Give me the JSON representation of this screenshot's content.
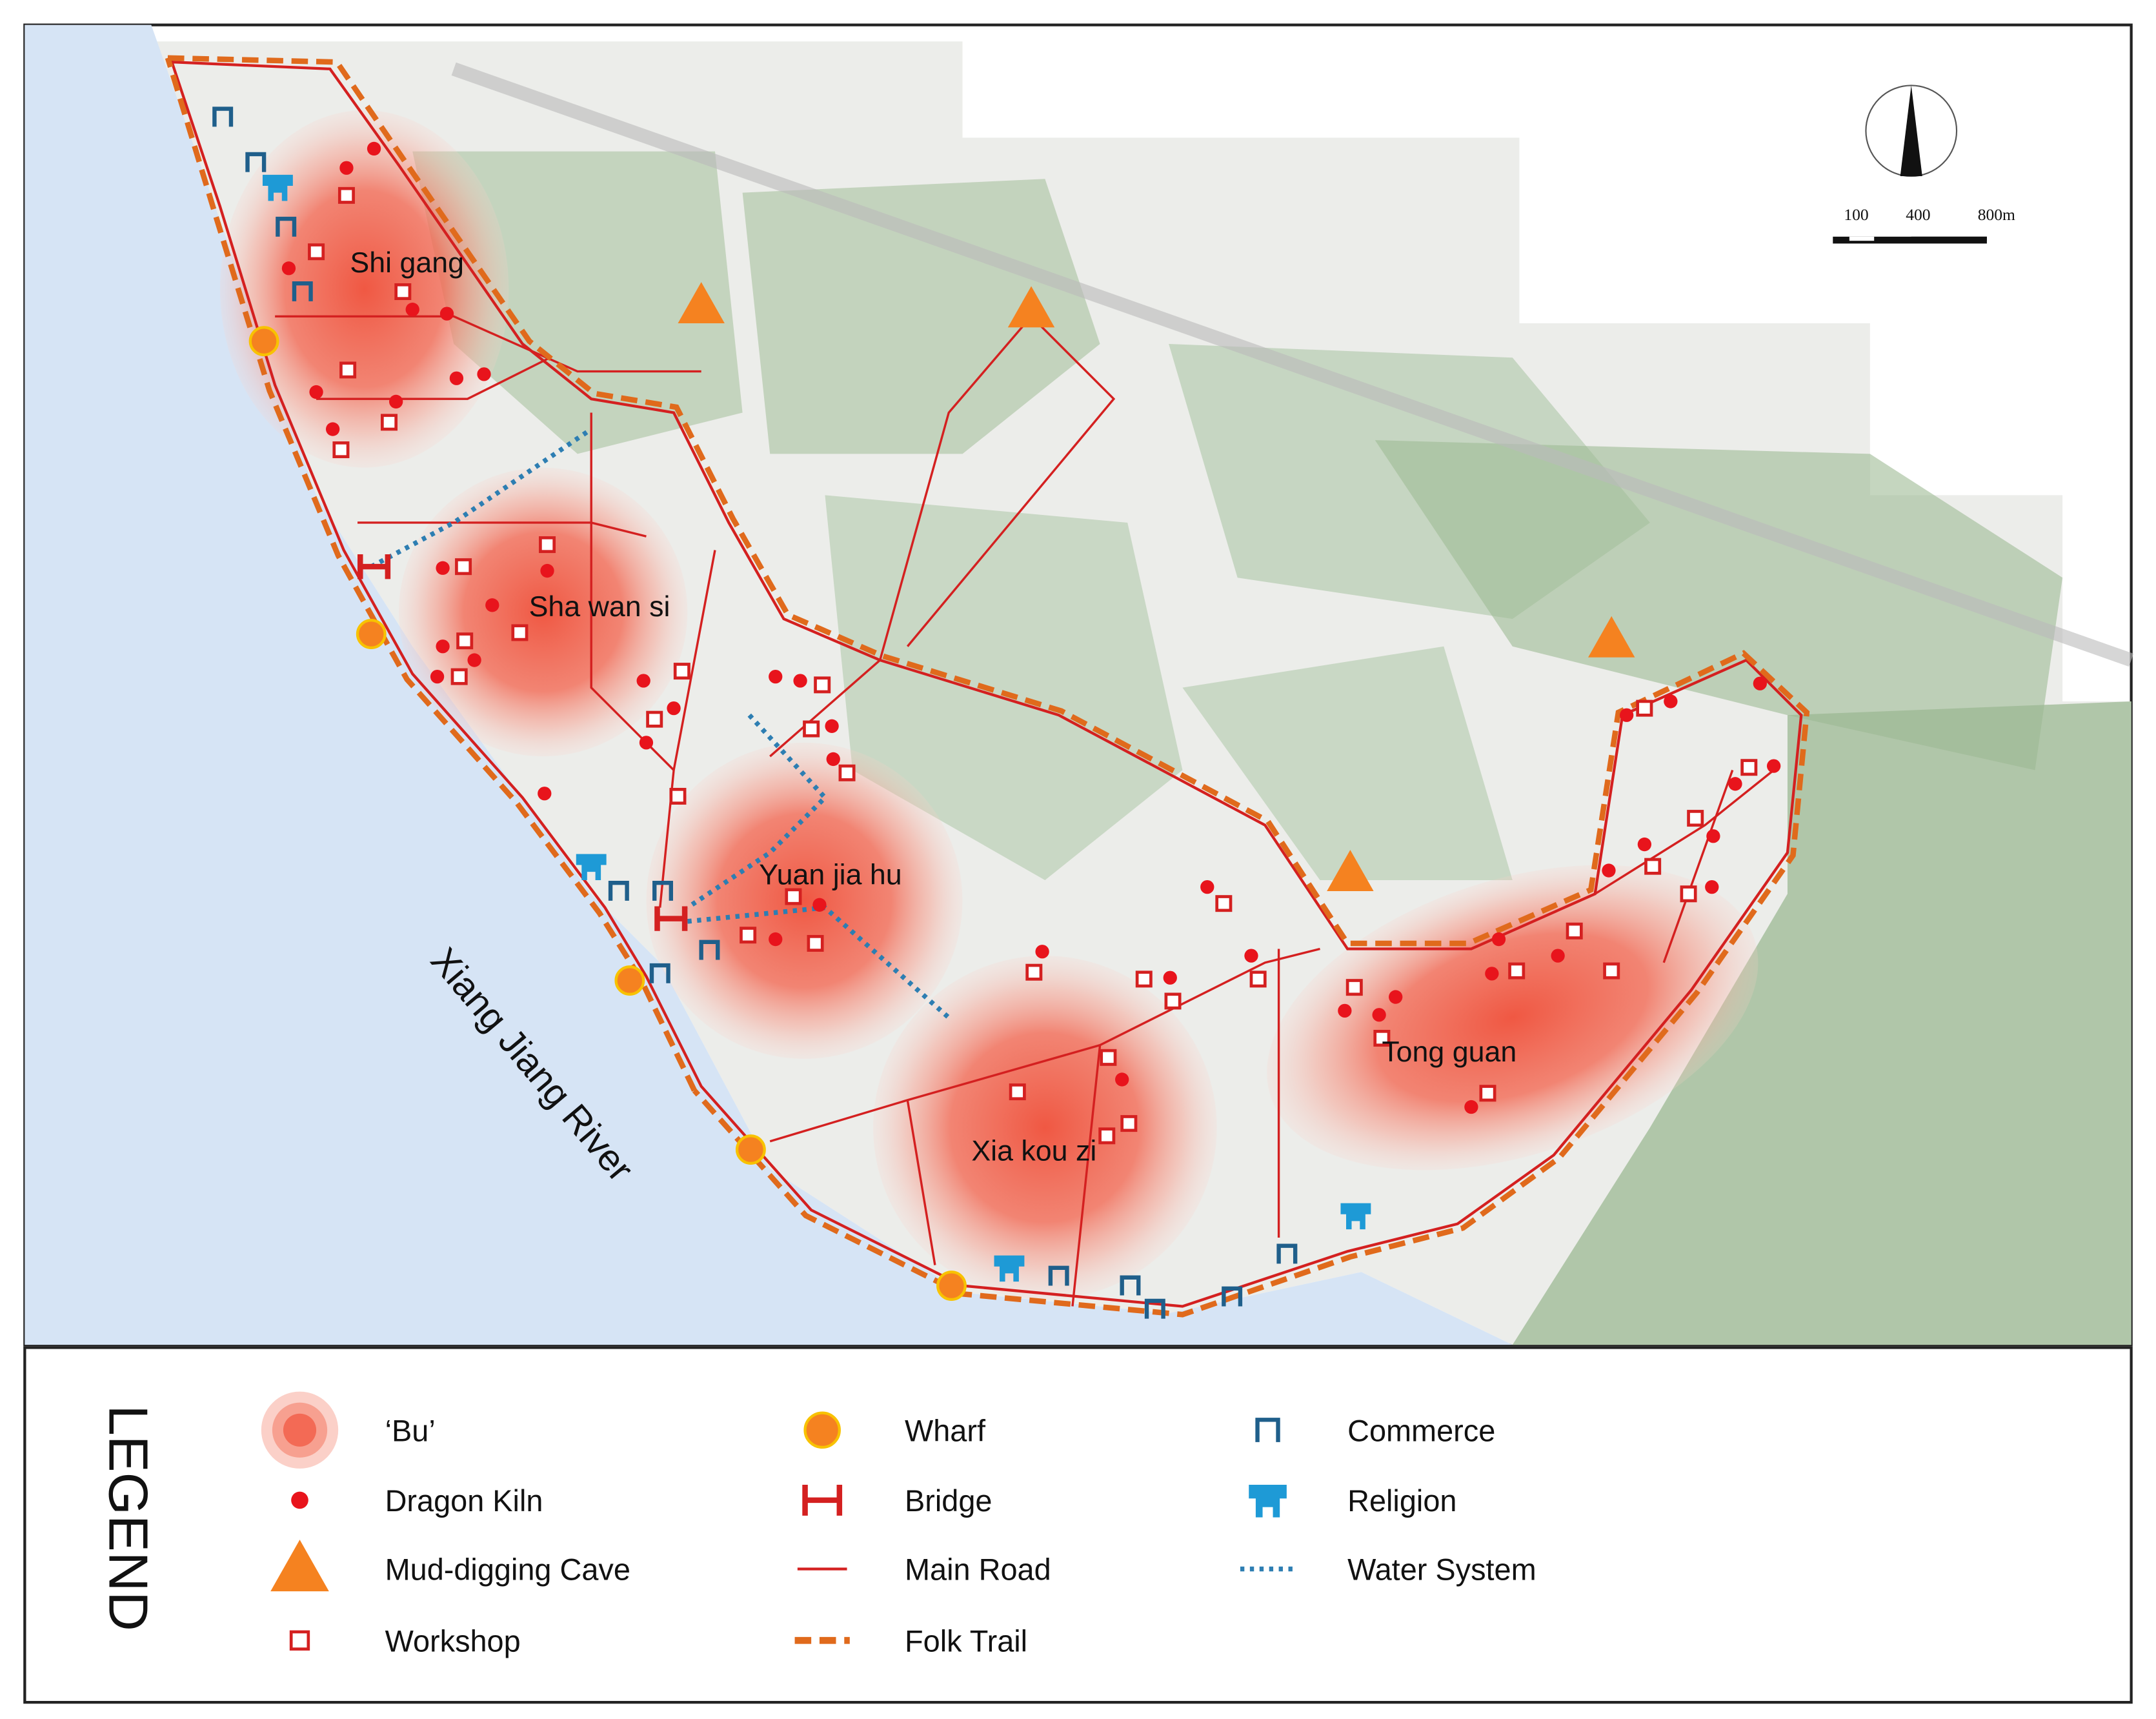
{
  "map": {
    "places": [
      "Shi gang",
      "Sha wan si",
      "Yuan jia hu",
      "Xia kou zi",
      "Tong guan"
    ],
    "river": "Xiang Jiang River",
    "scale": [
      "100",
      "400",
      "800m"
    ]
  },
  "legend": {
    "title": "LEGEND",
    "items": [
      "‘Bu’",
      "Dragon Kiln",
      "Mud-digging Cave",
      "Workshop",
      "Wharf",
      "Bridge",
      "Main Road",
      "Folk Trail",
      "Commerce",
      "Religion",
      "Water System"
    ]
  }
}
